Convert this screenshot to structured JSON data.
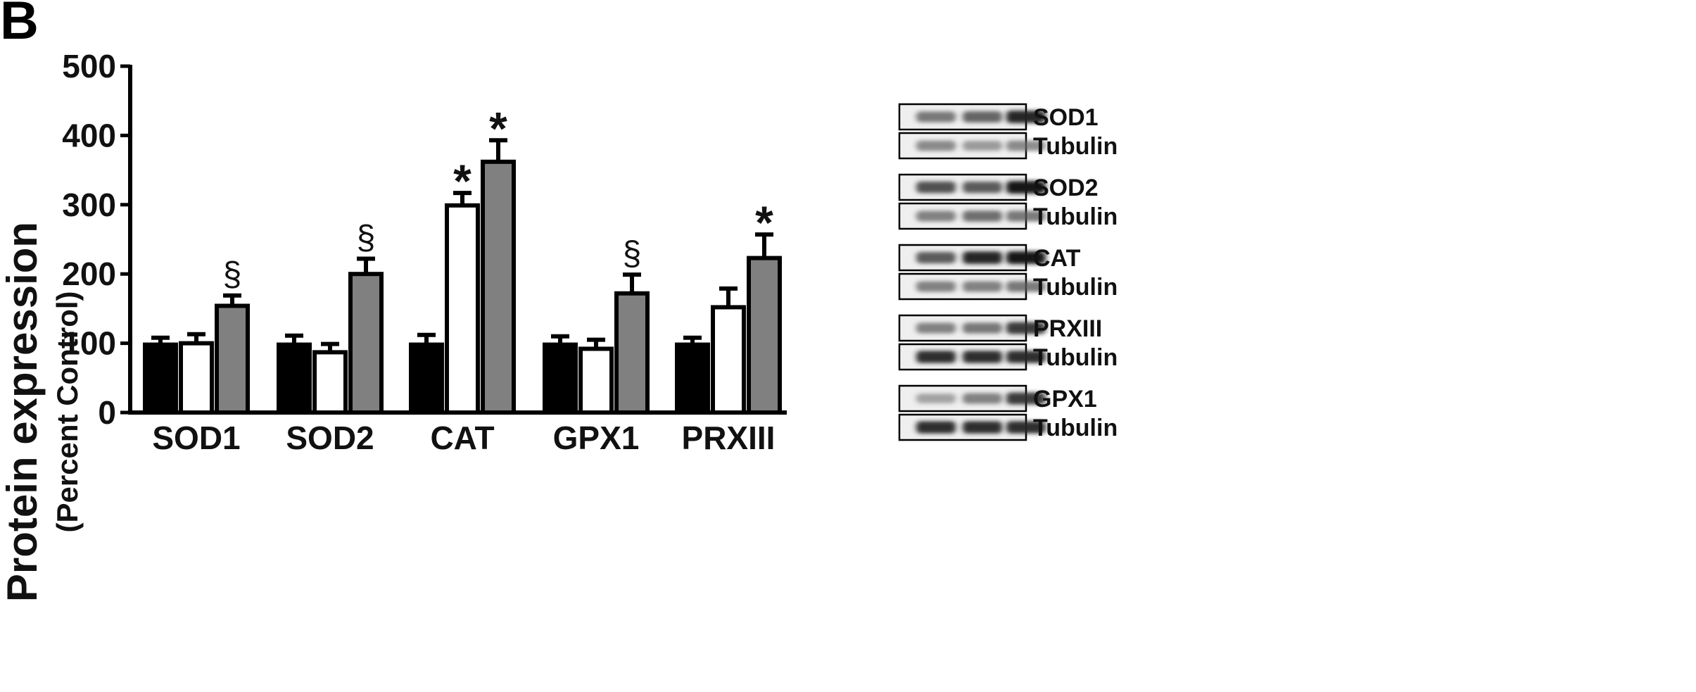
{
  "panel_label": "B",
  "chart_data": {
    "type": "bar",
    "title": "",
    "ylabel_line1": "Protein expression",
    "ylabel_line2": "(Percent Control)",
    "xlabel": "",
    "ylim": [
      0,
      500
    ],
    "yticks": [
      0,
      100,
      200,
      300,
      400,
      500
    ],
    "categories": [
      "SOD1",
      "SOD2",
      "CAT",
      "GPX1",
      "PRXIII"
    ],
    "series": [
      {
        "color": "#000000",
        "values": [
          98,
          98,
          98,
          98,
          98
        ],
        "errors": [
          10,
          13,
          14,
          12,
          10
        ],
        "annotations": [
          "",
          "",
          "",
          "",
          ""
        ]
      },
      {
        "color": "#ffffff",
        "values": [
          100,
          87,
          299,
          92,
          152
        ],
        "errors": [
          13,
          12,
          18,
          13,
          27
        ],
        "annotations": [
          "",
          "",
          "*",
          "",
          ""
        ]
      },
      {
        "color": "#808080",
        "values": [
          154,
          200,
          362,
          172,
          223
        ],
        "errors": [
          15,
          22,
          31,
          27,
          34
        ],
        "annotations": [
          "§",
          "§",
          "*",
          "§",
          "*"
        ]
      }
    ],
    "grid": false,
    "legend": "none"
  },
  "blots": [
    {
      "labels": [
        "SOD1",
        "Tubulin"
      ],
      "intensity": [
        [
          0.55,
          0.65,
          0.95
        ],
        [
          0.45,
          0.35,
          0.45
        ]
      ]
    },
    {
      "labels": [
        "SOD2",
        "Tubulin"
      ],
      "intensity": [
        [
          0.75,
          0.7,
          1.0
        ],
        [
          0.5,
          0.6,
          0.55
        ]
      ]
    },
    {
      "labels": [
        "CAT",
        "Tubulin"
      ],
      "intensity": [
        [
          0.7,
          0.95,
          1.0
        ],
        [
          0.5,
          0.5,
          0.55
        ]
      ]
    },
    {
      "labels": [
        "PRXIII",
        "Tubulin"
      ],
      "intensity": [
        [
          0.5,
          0.55,
          0.85
        ],
        [
          0.9,
          0.9,
          0.9
        ]
      ]
    },
    {
      "labels": [
        "GPX1",
        "Tubulin"
      ],
      "intensity": [
        [
          0.3,
          0.5,
          0.85
        ],
        [
          0.9,
          0.9,
          0.9
        ]
      ]
    }
  ]
}
